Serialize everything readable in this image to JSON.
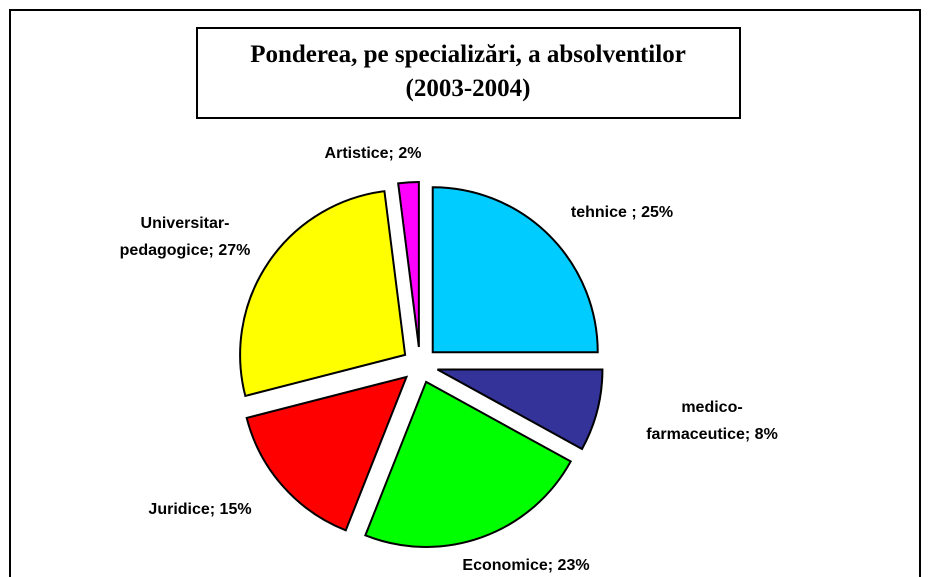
{
  "chart_data": {
    "type": "pie",
    "title": "Ponderea, pe specializări, a absolventilor\n(2003-2004)",
    "values": [
      25,
      8,
      23,
      15,
      27,
      2
    ],
    "value_labels": [
      "tehnice ; 25%",
      "medico-\nfarmaceutice; 8%",
      "Economice; 23%",
      "Juridice; 15%",
      "Universitar-\npedagogice; 27%",
      "Artistice; 2%"
    ],
    "colors": [
      "#00ccff",
      "#333399",
      "#00ff00",
      "#ff0000",
      "#ffff00",
      "#ff00ff"
    ]
  }
}
